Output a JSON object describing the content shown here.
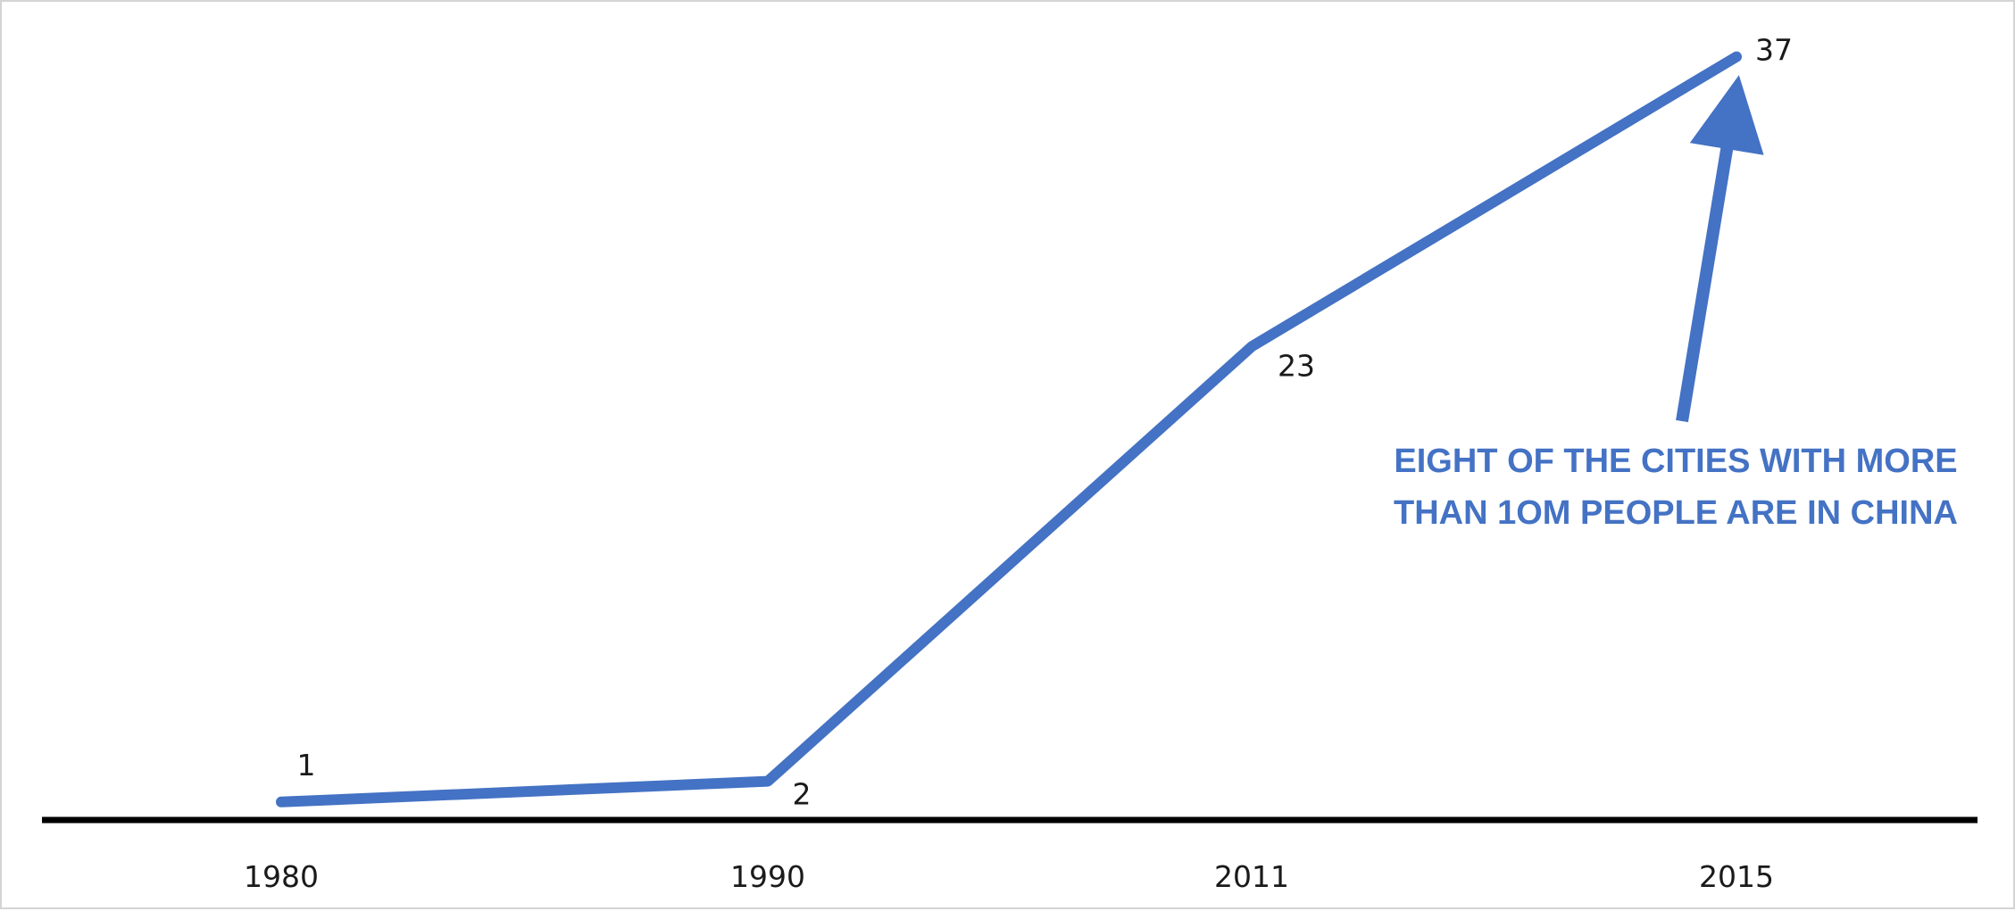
{
  "chart_data": {
    "type": "line",
    "title": "",
    "xlabel": "",
    "ylabel": "",
    "categories": [
      "1980",
      "1990",
      "2011",
      "2015"
    ],
    "series": [
      {
        "values": [
          1,
          2,
          23,
          37
        ],
        "color": "#4472c4"
      }
    ],
    "data_labels": [
      "1",
      "2",
      "23",
      "37"
    ],
    "ylim": [
      0,
      38
    ],
    "grid": false,
    "legend": "none",
    "axis_color": "#000000",
    "annotation": {
      "line1": "EIGHT OF THE CITIES WITH MORE",
      "line2": "THAN 1OM PEOPLE ARE IN CHINA",
      "color": "#4472c4",
      "points_to_category": "2015"
    }
  }
}
